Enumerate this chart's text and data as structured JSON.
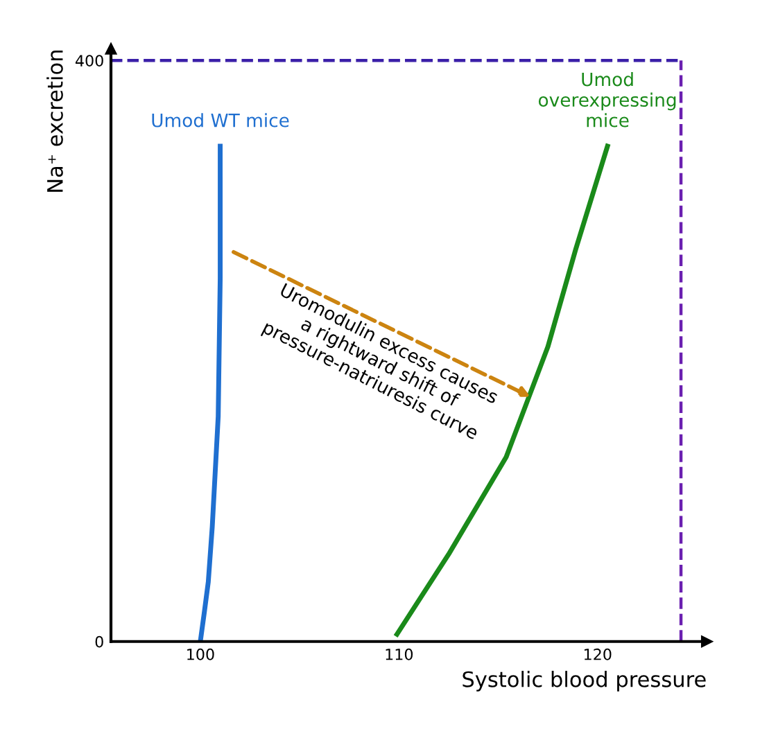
{
  "chart_data": {
    "type": "line",
    "xlabel": "Systolic blood pressure",
    "ylabel": "Na⁺ excretion",
    "series": [
      {
        "name": "Umod WT mice",
        "color": "#1f6fd0",
        "x": [
          100,
          100.2,
          100.4,
          100.6,
          100.9,
          101.0,
          101.0
        ],
        "values": [
          0,
          20,
          41,
          79,
          155,
          250,
          341
        ]
      },
      {
        "name": "Umod\noverexpressing\nmice",
        "color": "#1a8a1a",
        "x": [
          109.9,
          112.5,
          115.4,
          117.5,
          118.9,
          120.5
        ],
        "values": [
          5,
          60,
          127,
          203,
          270,
          341
        ]
      }
    ],
    "xlim": [
      95.5,
      125.5
    ],
    "ylim": [
      0,
      408
    ],
    "xticks": [
      100,
      110,
      120
    ],
    "yticks": [
      0,
      400
    ],
    "ref_lines": [
      {
        "axis": "y",
        "value": 400,
        "color": "#3a1fa8",
        "line_style": "dashed"
      },
      {
        "axis": "x",
        "value": 124.2,
        "color": "#6a1fb0",
        "line_style": "dashed"
      }
    ],
    "annotations": [
      "Uromodulin excess causes\na rightward shift of\npressure-natriuresis curve"
    ],
    "grid": false,
    "marker": "none",
    "line_style": "solid",
    "legend": false
  }
}
